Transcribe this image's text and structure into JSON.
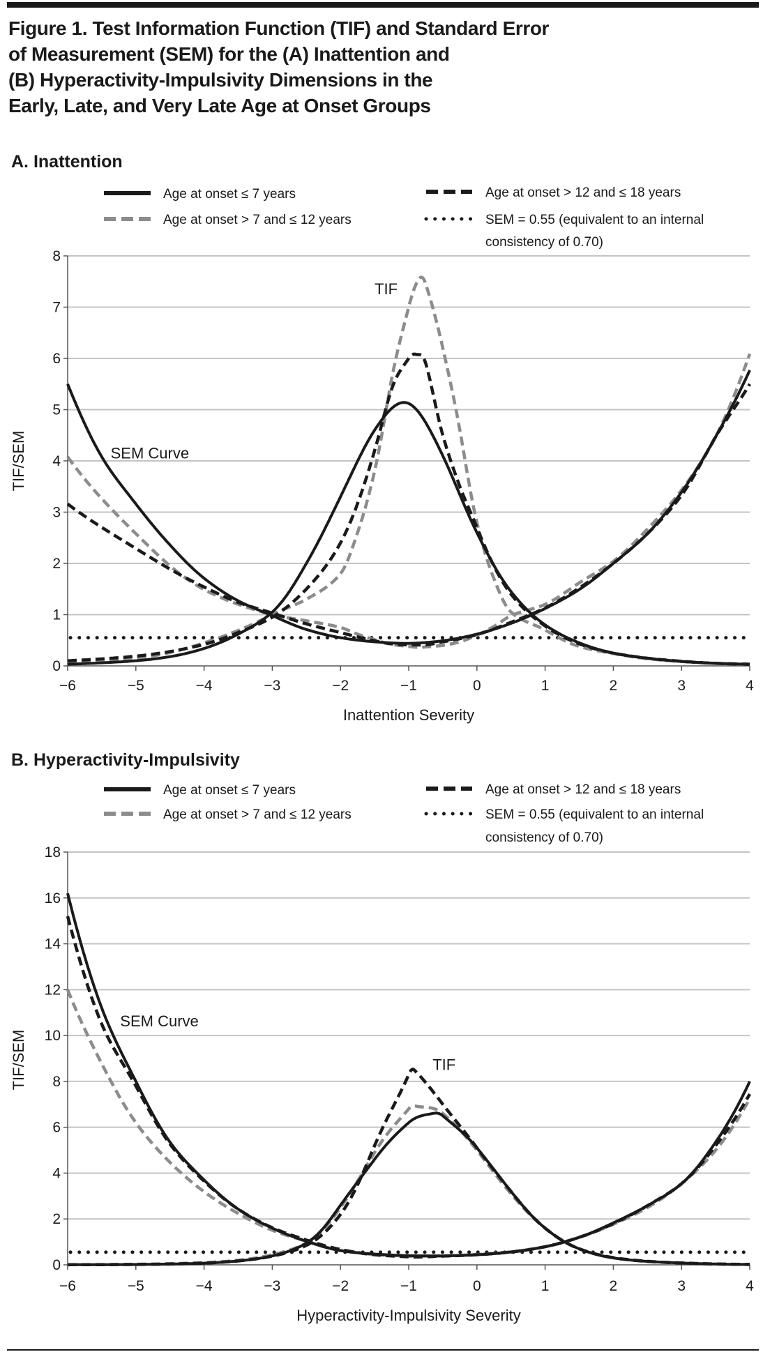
{
  "figure": {
    "title_lines": [
      "Figure 1. Test Information Function (TIF) and Standard Error",
      "of Measurement (SEM) for the (A) Inattention and",
      "(B) Hyperactivity-Impulsivity Dimensions in the",
      "Early, Late, and Very Late Age at Onset Groups"
    ]
  },
  "chart_data": [
    {
      "type": "line",
      "heading": "A. Inattention",
      "xlabel": "Inattention Severity",
      "ylabel": "TIF/SEM",
      "xlim": [
        -6,
        4
      ],
      "ylim": [
        0,
        8
      ],
      "grid": "horizontal",
      "xticks": [
        -6,
        -5,
        -4,
        -3,
        -2,
        -1,
        0,
        1,
        2,
        3,
        4
      ],
      "xtick_labels": [
        "−6",
        "−5",
        "−4",
        "−3",
        "−2",
        "−1",
        "0",
        "1",
        "2",
        "3",
        "4"
      ],
      "yticks": [
        0,
        1,
        2,
        3,
        4,
        5,
        6,
        7,
        8
      ],
      "ytick_labels": [
        "0",
        "1",
        "2",
        "3",
        "4",
        "5",
        "6",
        "7",
        "8"
      ],
      "legend": {
        "placement": "top",
        "entries": [
          {
            "label_lines": [
              "Age at onset ≤ 7 years"
            ],
            "style": "solid",
            "color": "#1a1a1a"
          },
          {
            "label_lines": [
              "Age at onset > 7 and ≤ 12 years"
            ],
            "style": "dashed",
            "color": "#8c8c8c"
          },
          {
            "label_lines": [
              "Age at onset > 12 and ≤ 18 years"
            ],
            "style": "dashed",
            "color": "#1a1a1a"
          },
          {
            "label_lines": [
              "SEM = 0.55 (equivalent to an internal",
              "consistency of 0.70)"
            ],
            "style": "dotted",
            "color": "#1a1a1a"
          }
        ]
      },
      "series": [
        {
          "name": "Age at onset ≤ 7 years",
          "style": "solid",
          "color": "#1a1a1a",
          "x": [
            -6,
            -5.5,
            -5,
            -4.5,
            -4,
            -3.5,
            -3,
            -2.5,
            -2,
            -1.5,
            -1,
            -0.5,
            0,
            0.5,
            1,
            1.5,
            2,
            2.5,
            3,
            3.5,
            4
          ],
          "tif": [
            0.033,
            0.06,
            0.1,
            0.18,
            0.34,
            0.62,
            1.05,
            2.0,
            3.3,
            4.6,
            5.12,
            4.1,
            2.6,
            1.45,
            0.8,
            0.45,
            0.25,
            0.15,
            0.087,
            0.05,
            0.03
          ],
          "sem": [
            5.5,
            4.08,
            3.16,
            2.36,
            1.71,
            1.27,
            0.98,
            0.71,
            0.55,
            0.47,
            0.44,
            0.49,
            0.62,
            0.83,
            1.12,
            1.49,
            2.0,
            2.58,
            3.39,
            4.47,
            5.77
          ]
        },
        {
          "name": "Age at onset > 7 and ≤ 12 years",
          "style": "dashed",
          "color": "#8c8c8c",
          "x": [
            -6,
            -5,
            -4,
            -3,
            -2.5,
            -2,
            -1.75,
            -1.5,
            -1.25,
            -1,
            -0.85,
            -0.75,
            -0.5,
            -0.25,
            0,
            0.25,
            0.5,
            1,
            1.5,
            2,
            2.5,
            3,
            3.5,
            4
          ],
          "tif": [
            0.06,
            0.15,
            0.45,
            1.0,
            1.3,
            1.8,
            2.6,
            3.8,
            5.6,
            7.0,
            7.55,
            7.45,
            6.2,
            4.6,
            2.8,
            1.7,
            1.05,
            0.7,
            0.38,
            0.24,
            0.14,
            0.085,
            0.05,
            0.027
          ],
          "sem": [
            4.08,
            2.58,
            1.49,
            1.0,
            0.88,
            0.75,
            0.62,
            0.51,
            0.42,
            0.38,
            0.36,
            0.37,
            0.4,
            0.47,
            0.6,
            0.77,
            0.98,
            1.2,
            1.62,
            2.04,
            2.67,
            3.43,
            4.47,
            6.09
          ]
        },
        {
          "name": "Age at onset > 12 and ≤ 18 years",
          "style": "dashed",
          "color": "#1a1a1a",
          "x": [
            -6,
            -5,
            -4,
            -3.5,
            -3,
            -2.5,
            -2,
            -1.5,
            -1.25,
            -1,
            -0.9,
            -0.75,
            -0.5,
            -0.25,
            0,
            0.5,
            1,
            1.5,
            2,
            2.5,
            3,
            3.5,
            4
          ],
          "tif": [
            0.1,
            0.19,
            0.42,
            0.65,
            0.95,
            1.5,
            2.4,
            4.2,
            5.4,
            6.0,
            6.08,
            5.9,
            4.5,
            3.5,
            2.7,
            1.4,
            0.78,
            0.43,
            0.25,
            0.15,
            0.09,
            0.05,
            0.033
          ],
          "sem": [
            3.16,
            2.29,
            1.54,
            1.24,
            1.03,
            0.82,
            0.65,
            0.49,
            0.43,
            0.41,
            0.41,
            0.41,
            0.47,
            0.53,
            0.61,
            0.85,
            1.13,
            1.52,
            2.0,
            2.58,
            3.33,
            4.47,
            5.5
          ]
        }
      ],
      "reference_line": {
        "name": "SEM = 0.55 (equivalent to an internal consistency of 0.70)",
        "y": 0.55,
        "style": "dotted",
        "color": "#1a1a1a"
      },
      "annotations": [
        {
          "text": "TIF",
          "x": -1.5,
          "y": 7.25
        },
        {
          "text": "SEM Curve",
          "x": -5.37,
          "y": 4.05
        }
      ]
    },
    {
      "type": "line",
      "heading": "B. Hyperactivity-Impulsivity",
      "xlabel": "Hyperactivity-Impulsivity Severity",
      "ylabel": "TIF/SEM",
      "xlim": [
        -6,
        4
      ],
      "ylim": [
        0,
        18
      ],
      "grid": "horizontal",
      "xticks": [
        -6,
        -5,
        -4,
        -3,
        -2,
        -1,
        0,
        1,
        2,
        3,
        4
      ],
      "xtick_labels": [
        "−6",
        "−5",
        "−4",
        "−3",
        "−2",
        "−1",
        "0",
        "1",
        "2",
        "3",
        "4"
      ],
      "yticks": [
        0,
        2,
        4,
        6,
        8,
        10,
        12,
        14,
        16,
        18
      ],
      "ytick_labels": [
        "0",
        "2",
        "4",
        "6",
        "8",
        "10",
        "12",
        "14",
        "16",
        "18"
      ],
      "legend": {
        "placement": "top",
        "entries": [
          {
            "label_lines": [
              "Age at onset ≤ 7 years"
            ],
            "style": "solid",
            "color": "#1a1a1a"
          },
          {
            "label_lines": [
              "Age at onset > 7 and ≤ 12 years"
            ],
            "style": "dashed",
            "color": "#8c8c8c"
          },
          {
            "label_lines": [
              "Age at onset > 12 and ≤ 18 years"
            ],
            "style": "dashed",
            "color": "#1a1a1a"
          },
          {
            "label_lines": [
              "SEM = 0.55 (equivalent to an internal",
              "consistency of 0.70)"
            ],
            "style": "dotted",
            "color": "#1a1a1a"
          }
        ]
      },
      "series": [
        {
          "name": "Age at onset ≤ 7 years",
          "style": "solid",
          "color": "#1a1a1a",
          "x": [
            -6,
            -5.5,
            -5,
            -4.5,
            -4,
            -3.5,
            -3,
            -2.5,
            -2,
            -1.5,
            -1,
            -0.65,
            -0.5,
            0,
            0.5,
            1,
            1.5,
            2,
            2.5,
            3,
            3.5,
            4
          ],
          "tif": [
            0.0038,
            0.008,
            0.0156,
            0.035,
            0.073,
            0.17,
            0.39,
            0.95,
            2.6,
            4.6,
            6.2,
            6.6,
            6.5,
            5.1,
            3.2,
            1.6,
            0.7,
            0.3,
            0.15,
            0.08,
            0.035,
            0.0156
          ],
          "sem": [
            16.2,
            11.2,
            8.0,
            5.35,
            3.7,
            2.43,
            1.6,
            1.03,
            0.62,
            0.47,
            0.4,
            0.39,
            0.39,
            0.44,
            0.56,
            0.79,
            1.2,
            1.83,
            2.58,
            3.54,
            5.35,
            8.0
          ]
        },
        {
          "name": "Age at onset > 7 and ≤ 12 years",
          "style": "dashed",
          "color": "#8c8c8c",
          "x": [
            -6,
            -5.5,
            -5,
            -4.5,
            -4,
            -3.5,
            -3,
            -2.5,
            -2,
            -1.5,
            -1,
            -0.85,
            -0.5,
            0,
            0.5,
            1,
            1.5,
            2,
            2.5,
            3,
            3.5,
            4
          ],
          "tif": [
            0.0069,
            0.013,
            0.026,
            0.05,
            0.098,
            0.2,
            0.44,
            0.95,
            2.5,
            4.9,
            6.8,
            6.9,
            6.6,
            5.0,
            3.1,
            1.6,
            0.7,
            0.32,
            0.16,
            0.08,
            0.04,
            0.019
          ],
          "sem": [
            12.0,
            8.77,
            6.2,
            4.47,
            3.19,
            2.24,
            1.51,
            1.03,
            0.63,
            0.45,
            0.38,
            0.38,
            0.39,
            0.45,
            0.57,
            0.79,
            1.2,
            1.77,
            2.5,
            3.54,
            5.0,
            7.25
          ]
        },
        {
          "name": "Age at onset > 12 and ≤ 18 years",
          "style": "dashed",
          "color": "#1a1a1a",
          "x": [
            -6,
            -5.5,
            -5,
            -4.5,
            -4,
            -3.5,
            -3,
            -2.5,
            -2,
            -1.5,
            -1,
            -0.92,
            -0.5,
            0,
            0.5,
            1,
            1.5,
            2,
            2.5,
            3,
            3.5,
            4
          ],
          "tif": [
            0.0043,
            0.009,
            0.0165,
            0.036,
            0.075,
            0.17,
            0.38,
            0.85,
            2.2,
            5.2,
            8.3,
            8.5,
            7.0,
            5.1,
            3.2,
            1.6,
            0.7,
            0.31,
            0.15,
            0.08,
            0.037,
            0.018
          ],
          "sem": [
            15.2,
            10.5,
            7.8,
            5.27,
            3.65,
            2.43,
            1.62,
            1.08,
            0.67,
            0.44,
            0.35,
            0.34,
            0.38,
            0.44,
            0.56,
            0.79,
            1.2,
            1.8,
            2.58,
            3.54,
            5.2,
            7.45
          ]
        }
      ],
      "reference_line": {
        "name": "SEM = 0.55 (equivalent to an internal consistency of 0.70)",
        "y": 0.55,
        "style": "dotted",
        "color": "#1a1a1a"
      },
      "annotations": [
        {
          "text": "SEM Curve",
          "x": -5.23,
          "y": 10.4
        },
        {
          "text": "TIF",
          "x": -0.65,
          "y": 8.5
        }
      ]
    }
  ]
}
